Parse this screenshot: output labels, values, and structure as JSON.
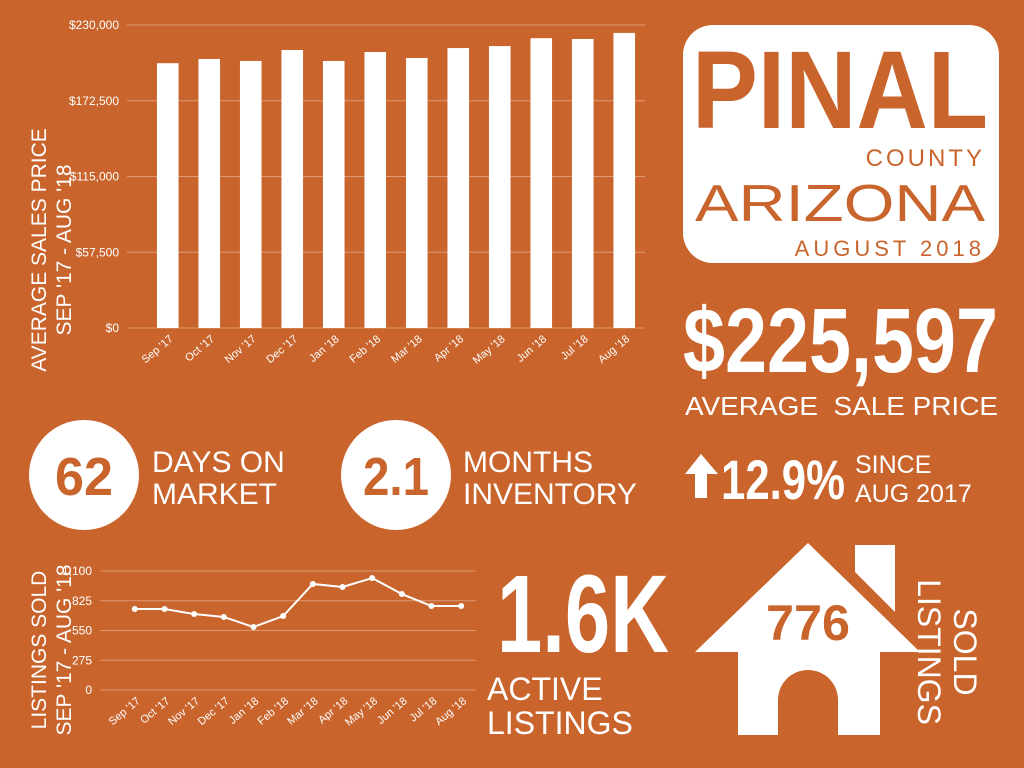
{
  "chart_data": [
    {
      "type": "bar",
      "ylabel": [
        "AVERAGE SALES PRICE",
        "SEP '17 - AUG '18"
      ],
      "categories": [
        "Sep '17",
        "Oct '17",
        "Nov '17",
        "Dec '17",
        "Jan '18",
        "Feb '18",
        "Mar '18",
        "Apr '18",
        "May '18",
        "Jun '18",
        "Jul '18",
        "Aug '18"
      ],
      "values": [
        201000,
        204200,
        202700,
        211000,
        202700,
        209500,
        205000,
        212500,
        214000,
        220000,
        219400,
        224000
      ],
      "color": "#ffffff",
      "ylim": [
        0,
        230000
      ],
      "yticks": [
        {
          "value": 0,
          "label": "$0"
        },
        {
          "value": 57500,
          "label": "$57,500"
        },
        {
          "value": 115000,
          "label": "$115,000"
        },
        {
          "value": 172500,
          "label": "$172,500"
        },
        {
          "value": 230000,
          "label": "$230,000"
        }
      ],
      "grid": true
    },
    {
      "type": "line",
      "ylabel": [
        "LISTINGS SOLD",
        "SEP '17 - AUG '18"
      ],
      "categories": [
        "Sep '17",
        "Oct '17",
        "Nov '17",
        "Dec '17",
        "Jan '18",
        "Feb '18",
        "Mar '18",
        "Apr '18",
        "May '18",
        "Jun '18",
        "Jul '18",
        "Aug '18"
      ],
      "values": [
        749,
        749,
        702,
        675,
        582,
        684,
        980,
        952,
        1035,
        887,
        776,
        776
      ],
      "color": "#ffffff",
      "ylim": [
        0,
        1100
      ],
      "yticks": [
        0,
        275,
        550,
        825,
        {
          "value": 1100,
          "label": "1,100"
        }
      ],
      "grid": true
    }
  ],
  "header": {
    "title": "PINAL",
    "county": "COUNTY",
    "state": "ARIZONA",
    "date": "AUGUST 2018"
  },
  "price": {
    "value": "$225,597",
    "label": "AVERAGE  SALE PRICE"
  },
  "days": {
    "value": "62",
    "label": [
      "DAYS ON",
      "MARKET"
    ]
  },
  "inventory": {
    "value": "2.1",
    "label": [
      "MONTHS",
      "INVENTORY"
    ]
  },
  "change": {
    "value": "12.9%",
    "label": [
      "SINCE",
      "AUG 2017"
    ]
  },
  "active": {
    "value": "1.6K",
    "label": [
      "ACTIVE",
      "LISTINGS"
    ]
  },
  "sold": {
    "value": "776",
    "label": [
      "LISTINGS",
      "SOLD"
    ]
  }
}
